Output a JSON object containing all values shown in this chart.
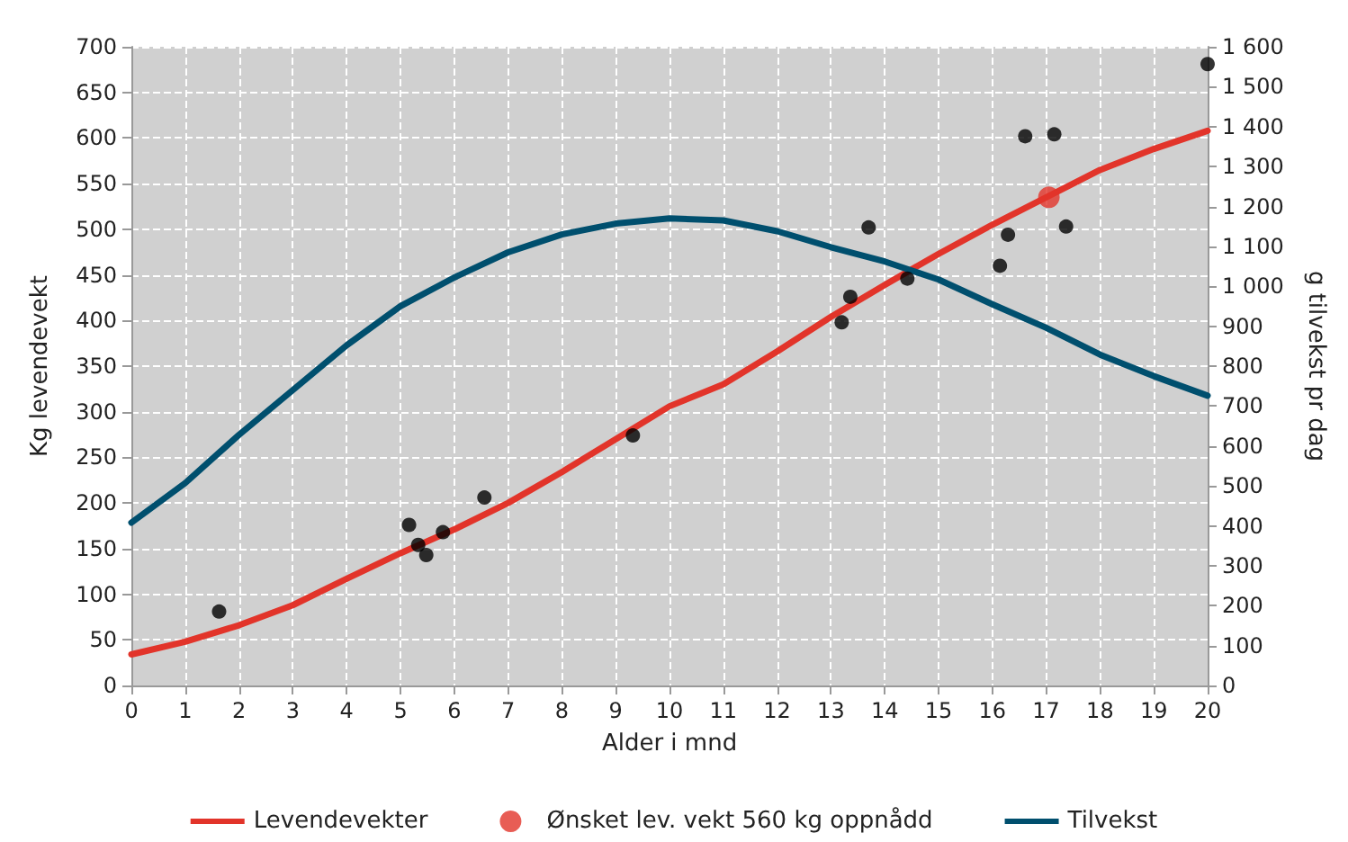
{
  "chart_data": {
    "type": "line",
    "xlabel": "Alder i mnd",
    "ylabel": "Kg levendevekt",
    "y2label": "g tilvekst pr dag",
    "xlim": [
      0,
      20
    ],
    "xticks": [
      0,
      1,
      2,
      3,
      4,
      5,
      6,
      7,
      8,
      9,
      10,
      11,
      12,
      13,
      14,
      15,
      16,
      17,
      18,
      19,
      20
    ],
    "ylim": [
      0,
      700
    ],
    "yticks": [
      0,
      50,
      100,
      150,
      200,
      250,
      300,
      350,
      400,
      450,
      500,
      550,
      600,
      650,
      700
    ],
    "y2lim": [
      0,
      1600
    ],
    "y2ticks": [
      0,
      100,
      200,
      300,
      400,
      500,
      600,
      700,
      800,
      900,
      {
        "value": 1000,
        "label": "1 000"
      },
      {
        "value": 1100,
        "label": "1 100"
      },
      {
        "value": 1200,
        "label": "1 200"
      },
      {
        "value": 1300,
        "label": "1 300"
      },
      {
        "value": 1400,
        "label": "1 400"
      },
      {
        "value": 1500,
        "label": "1 500"
      },
      {
        "value": 1600,
        "label": "1 600"
      }
    ],
    "grid": true,
    "legend": "bottom",
    "line_style": "solid",
    "series": [
      {
        "type": "scatter",
        "marker": "circle",
        "color": "#000000",
        "x": [
          1.63,
          5.16,
          5.33,
          5.48,
          5.79,
          6.56,
          9.32,
          13.2,
          13.36,
          13.7,
          14.42,
          16.14,
          16.29,
          16.61,
          17.15,
          17.37,
          20
        ],
        "values": [
          81,
          176,
          154,
          143,
          168,
          206,
          274,
          398,
          426,
          502,
          446,
          460,
          494,
          602,
          604,
          503,
          681
        ]
      },
      {
        "marker": "none",
        "name": "Levendevekter",
        "color": "#e2342a",
        "x": [
          0,
          1,
          2,
          3,
          4,
          5,
          6,
          7,
          8,
          9,
          10,
          11,
          12,
          13,
          14,
          15,
          16,
          17,
          18,
          19,
          20
        ],
        "values": [
          34,
          48,
          66,
          88,
          117,
          145,
          171,
          200,
          234,
          270,
          306,
          330,
          366,
          404,
          439,
          473,
          505,
          535,
          565,
          588,
          608
        ]
      },
      {
        "type": "scatter",
        "marker": "circle",
        "name": "Ønsket lev. vekt 560 kg oppnådd",
        "color": "#e2342a",
        "x": [
          17.05
        ],
        "values": [
          535
        ]
      },
      {
        "marker": "none",
        "name": "Tilvekst",
        "axis": "y2",
        "color": "#004f6e",
        "x": [
          0,
          1,
          2,
          3,
          4,
          5,
          6,
          7,
          8,
          9,
          10,
          11,
          12,
          13,
          14,
          15,
          16,
          17,
          18,
          19,
          20
        ],
        "values": [
          408,
          507,
          628,
          740,
          852,
          950,
          1022,
          1085,
          1130,
          1157,
          1170,
          1165,
          1138,
          1098,
          1062,
          1017,
          955,
          896,
          829,
          775,
          726
        ]
      }
    ]
  }
}
